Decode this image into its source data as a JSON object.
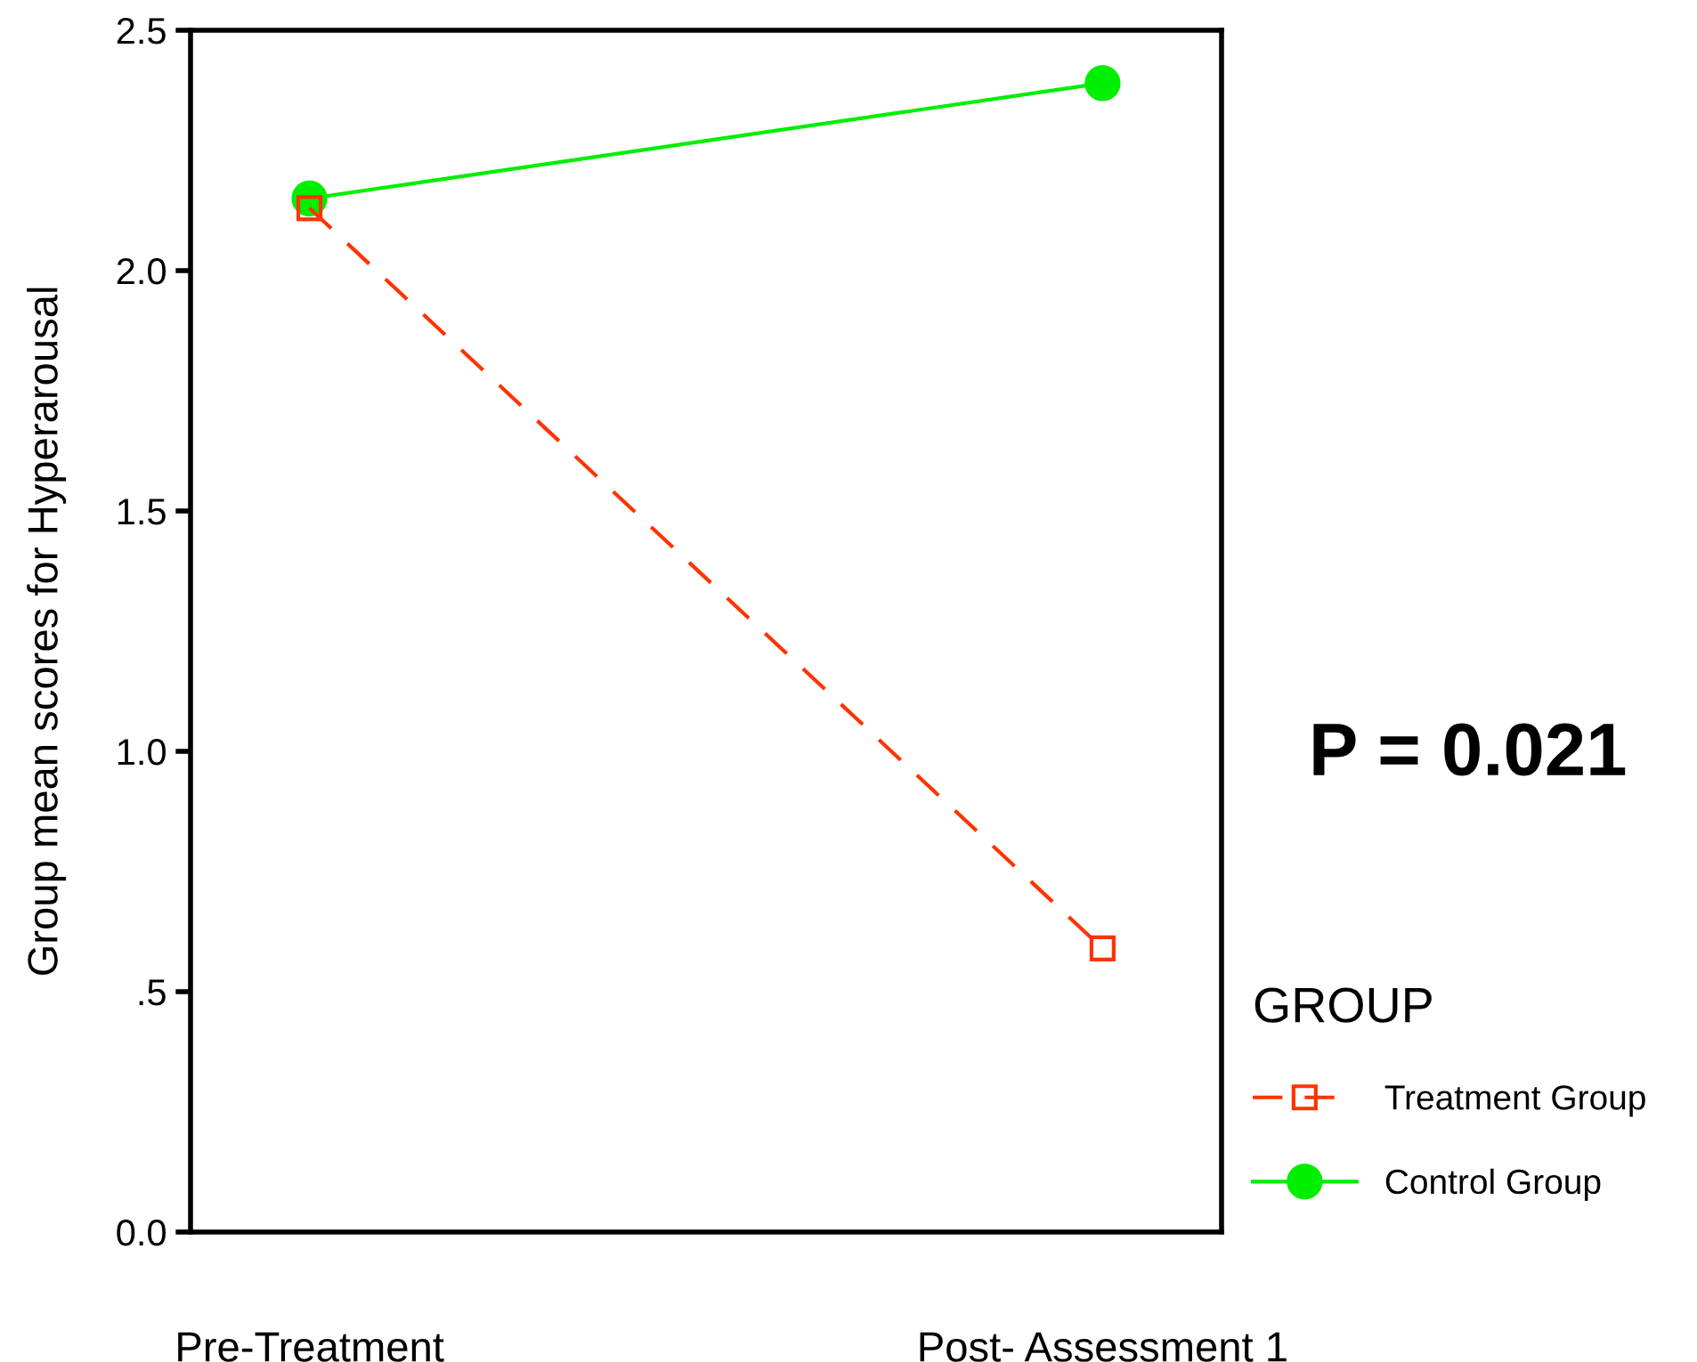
{
  "chart_data": {
    "type": "line",
    "ylabel": "Group mean scores for Hyperarousal",
    "legend_title": "GROUP",
    "categories": [
      "Pre-Treatment",
      "Post- Assessment 1"
    ],
    "series": [
      {
        "name": "Treatment Group",
        "color": "#ff3300",
        "values": [
          2.13,
          0.59
        ],
        "marker": "square",
        "line_style": "dashed"
      },
      {
        "name": "Control Group",
        "color": "#00ee00",
        "values": [
          2.15,
          2.39
        ],
        "marker": "circle",
        "line_style": "solid"
      }
    ],
    "ylim": [
      0,
      2.5
    ],
    "yticks": [
      {
        "value": 0,
        "label": "0.0"
      },
      {
        "value": 0.5,
        "label": ".5"
      },
      {
        "value": 1,
        "label": "1.0"
      },
      {
        "value": 1.5,
        "label": "1.5"
      },
      {
        "value": 2,
        "label": "2.0"
      },
      {
        "value": 2.5,
        "label": "2.5"
      }
    ],
    "annotations": [
      "P = 0.021"
    ],
    "grid": false,
    "legend": "bottom right"
  }
}
